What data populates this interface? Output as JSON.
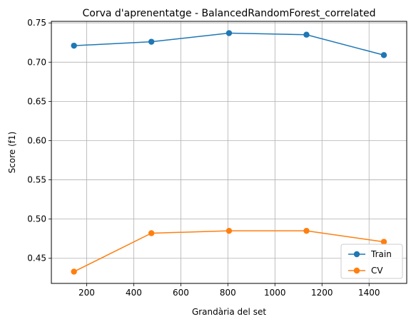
{
  "chart_data": {
    "type": "line",
    "title": "Corva d'aprenentatge - BalancedRandomForest_correlated",
    "xlabel": "Grandària del set",
    "ylabel": "Score (f1)",
    "xlim": [
      50,
      1560
    ],
    "ylim": [
      0.418,
      0.752
    ],
    "xticks": [
      200,
      400,
      600,
      800,
      1000,
      1200,
      1400
    ],
    "yticks": [
      0.45,
      0.5,
      0.55,
      0.6,
      0.65,
      0.7,
      0.75
    ],
    "xtick_labels": [
      "200",
      "400",
      "600",
      "800",
      "1000",
      "1200",
      "1400"
    ],
    "ytick_labels": [
      "0.45",
      "0.50",
      "0.55",
      "0.60",
      "0.65",
      "0.70",
      "0.75"
    ],
    "grid": true,
    "legend_position": "lower-right",
    "x": [
      146,
      475,
      805,
      1134,
      1463
    ],
    "series": [
      {
        "name": "Train",
        "color": "#1f77b4",
        "values": [
          0.721,
          0.726,
          0.737,
          0.735,
          0.709
        ]
      },
      {
        "name": "CV",
        "color": "#ff7f0e",
        "values": [
          0.433,
          0.482,
          0.485,
          0.485,
          0.471
        ]
      }
    ]
  }
}
